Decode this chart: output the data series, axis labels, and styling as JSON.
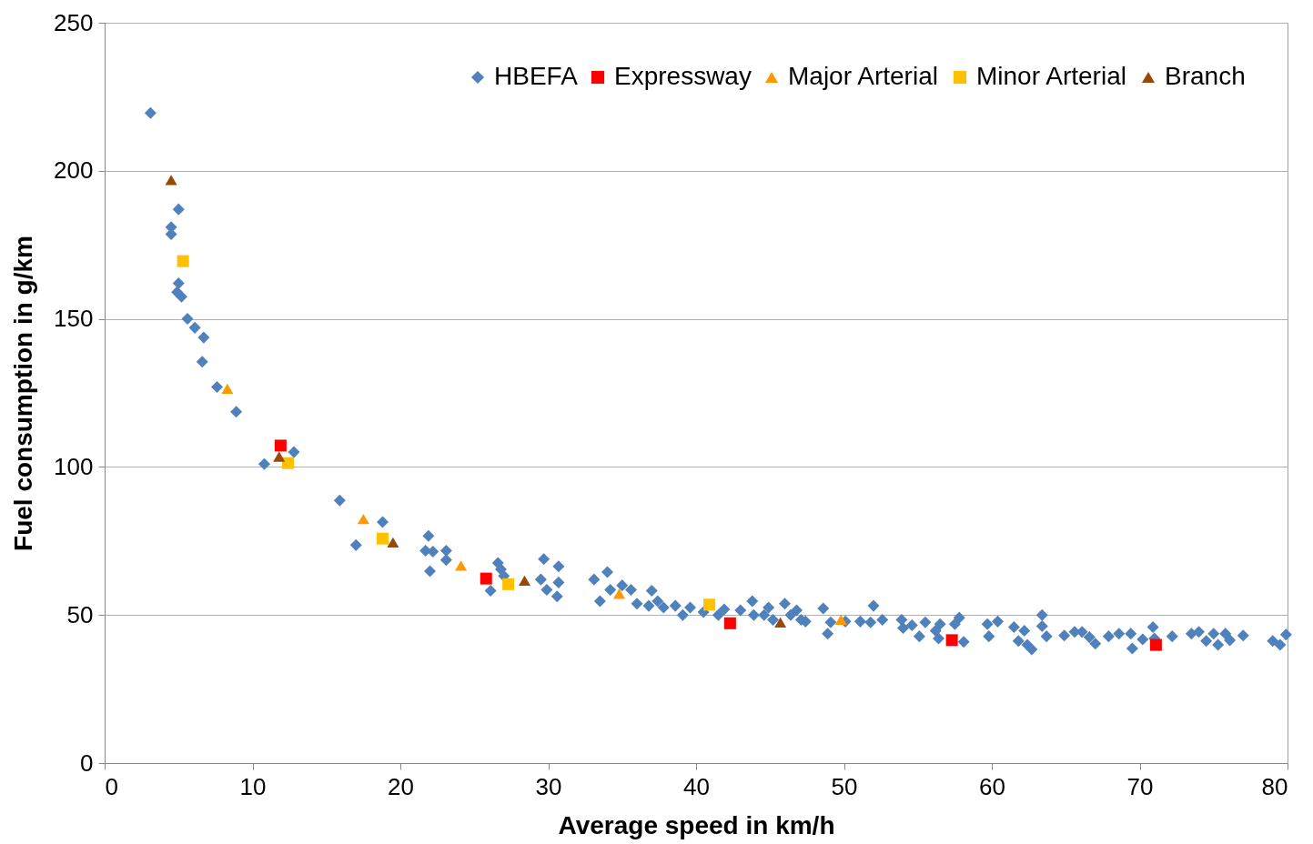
{
  "chart_data": {
    "type": "scatter",
    "xlabel": "Average speed in km/h",
    "ylabel": "Fuel consumption in g/km",
    "xlim": [
      0,
      80
    ],
    "xticks": [
      0,
      10,
      20,
      30,
      40,
      50,
      60,
      70,
      80
    ],
    "ylim": [
      0,
      250
    ],
    "yticks": [
      0,
      50,
      100,
      150,
      200,
      250
    ],
    "grid": "y",
    "legend": "top right",
    "series": [
      {
        "name": "HBEFA",
        "color": "#4f81bd",
        "marker": "diamond",
        "x": [
          3.1,
          5.0,
          4.5,
          4.5,
          5.0,
          4.9,
          5.2,
          5.6,
          6.1,
          6.7,
          6.6,
          7.6,
          8.9,
          10.8,
          12.8,
          15.9,
          17.0,
          18.8,
          21.9,
          21.7,
          22.2,
          22.0,
          23.1,
          23.1,
          26.1,
          26.6,
          26.8,
          27.0,
          29.7,
          29.5,
          29.9,
          30.6,
          30.7,
          30.7,
          33.1,
          34.0,
          33.5,
          34.2,
          35.0,
          35.6,
          36.0,
          36.8,
          37.0,
          37.4,
          37.8,
          38.6,
          39.1,
          39.6,
          40.5,
          41.5,
          41.9,
          43.0,
          43.8,
          43.9,
          44.6,
          44.9,
          45.2,
          46.0,
          46.4,
          46.8,
          47.1,
          47.4,
          48.6,
          48.9,
          49.1,
          50.1,
          51.1,
          52.0,
          51.8,
          52.6,
          53.9,
          54.0,
          54.6,
          55.1,
          55.5,
          56.2,
          56.4,
          56.5,
          57.5,
          57.8,
          58.1,
          59.7,
          59.8,
          60.4,
          61.5,
          61.8,
          62.2,
          62.4,
          62.7,
          63.4,
          63.4,
          63.7,
          64.9,
          65.6,
          66.1,
          66.6,
          67.0,
          67.9,
          68.6,
          69.4,
          69.5,
          70.2,
          70.9,
          71.0,
          72.2,
          73.5,
          74.0,
          74.5,
          75.0,
          75.3,
          75.8,
          76.1,
          77.0,
          79.0,
          79.5,
          79.9
        ],
        "values": [
          219.5,
          187,
          181,
          178.6,
          162,
          159,
          157.5,
          150,
          147,
          143.7,
          135.5,
          127,
          118.6,
          101,
          105,
          88.7,
          73.6,
          81.4,
          76.7,
          71.7,
          71.4,
          64.8,
          71.7,
          68.6,
          58.2,
          67.6,
          65.4,
          63.2,
          68.9,
          62,
          58.5,
          56.3,
          66.4,
          61,
          62,
          64.5,
          54.7,
          58.5,
          60,
          58.5,
          53.8,
          53.1,
          58.2,
          54.7,
          52.5,
          53.1,
          50,
          52.5,
          51,
          50,
          51.9,
          51.6,
          54.7,
          50,
          50,
          52.5,
          48.4,
          53.8,
          50,
          51.6,
          48.4,
          47.8,
          52.2,
          43.7,
          47.5,
          47.8,
          47.8,
          53.1,
          47.5,
          48.4,
          48.4,
          45.6,
          46.5,
          42.8,
          47.5,
          44.7,
          42.1,
          46.9,
          46.9,
          49.1,
          40.9,
          46.9,
          42.8,
          47.8,
          45.9,
          41.2,
          44.7,
          39.9,
          38.4,
          50,
          46.2,
          42.8,
          43.1,
          44.3,
          44.3,
          42.5,
          40.3,
          42.8,
          43.7,
          43.7,
          38.7,
          41.8,
          45.9,
          42.1,
          42.8,
          43.7,
          44.3,
          41.2,
          43.7,
          39.9,
          43.7,
          41.5,
          43.1,
          41.2,
          39.9,
          43.4
        ]
      },
      {
        "name": "Expressway",
        "color": "#ff0000",
        "marker": "square",
        "x": [
          11.9,
          25.8,
          42.3,
          57.3,
          71.1
        ],
        "values": [
          107.2,
          62.3,
          47.2,
          41.5,
          39.9
        ]
      },
      {
        "name": "Major Arterial",
        "color": "#ff9900",
        "marker": "triangle",
        "x": [
          8.3,
          17.5,
          24.1,
          34.8,
          49.8
        ],
        "values": [
          126.4,
          82.4,
          66.7,
          57.2,
          48.4
        ]
      },
      {
        "name": "Minor Arterial",
        "color": "#ffc000",
        "marker": "square",
        "x": [
          5.3,
          12.4,
          18.8,
          27.3,
          40.9
        ],
        "values": [
          169.5,
          101.3,
          75.8,
          60.4,
          53.5
        ]
      },
      {
        "name": "Branch",
        "color": "#984807",
        "marker": "triangle",
        "x": [
          4.5,
          11.8,
          19.5,
          28.4,
          45.7
        ],
        "values": [
          196.9,
          103.5,
          74.5,
          61.6,
          47.5
        ]
      }
    ]
  }
}
